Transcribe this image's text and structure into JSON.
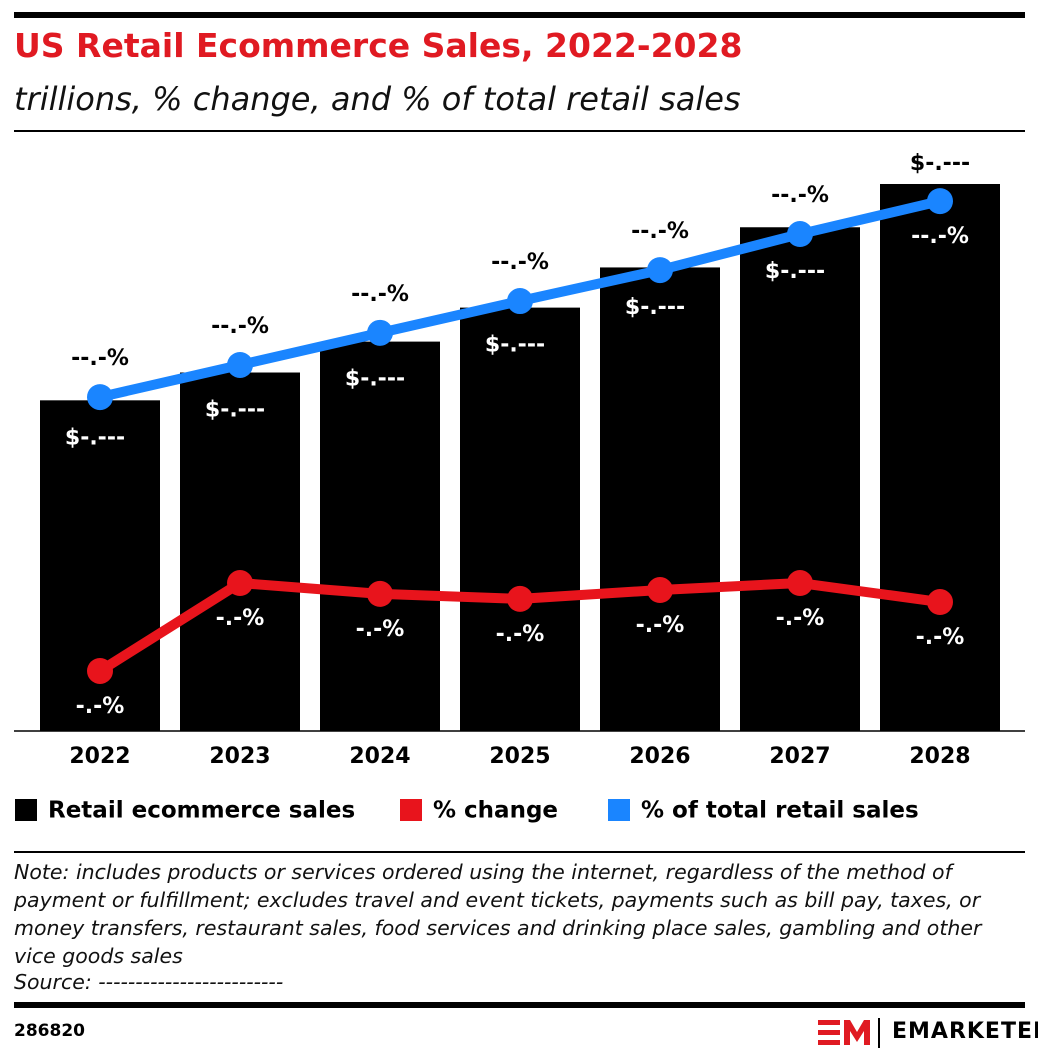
{
  "chart_data": {
    "type": "bar",
    "title": "US Retail Ecommerce Sales, 2022-2028",
    "subtitle": "trillions, % change, and % of total retail sales",
    "categories": [
      "2022",
      "2023",
      "2024",
      "2025",
      "2026",
      "2027",
      "2028"
    ],
    "ylim": [
      0,
      1.88
    ],
    "y2lim": [
      6,
      21
    ],
    "series": [
      {
        "name": "Retail ecommerce sales",
        "type": "bar",
        "color": "#000000",
        "values": [
          1.07,
          1.16,
          1.26,
          1.37,
          1.5,
          1.63,
          1.77
        ],
        "value_labels": [
          "$-.---",
          "$-.---",
          "$-.---",
          "$-.---",
          "$-.---",
          "$-.---",
          "$-.---"
        ]
      },
      {
        "name": "% change",
        "type": "line",
        "axis": "y2",
        "color": "#e8141c",
        "values": [
          7.55,
          9.82,
          9.54,
          9.41,
          9.64,
          9.82,
          9.33
        ],
        "value_labels": [
          "-.-%",
          "-.-%",
          "-.-%",
          "-.-%",
          "-.-%",
          "-.-%",
          "-.-%"
        ]
      },
      {
        "name": "% of total retail sales",
        "type": "line",
        "axis": "y2",
        "color": "#1a85ff",
        "values": [
          14.62,
          15.45,
          16.28,
          17.1,
          17.9,
          18.83,
          19.68
        ],
        "value_labels": [
          "--.-%",
          "--.-%",
          "--.-%",
          "--.-%",
          "--.-%",
          "--.-%",
          "--.-%"
        ]
      }
    ]
  },
  "note": "Note: includes products or services ordered using the internet, regardless of the method of payment or fulfillment; excludes travel and event tickets, payments such as bill pay, taxes, or money transfers, restaurant sales, food services and drinking place sales, gambling and other vice goods sales",
  "source": "Source: -------------------------",
  "footer": {
    "id": "286820",
    "brand": "EMARKETER"
  }
}
